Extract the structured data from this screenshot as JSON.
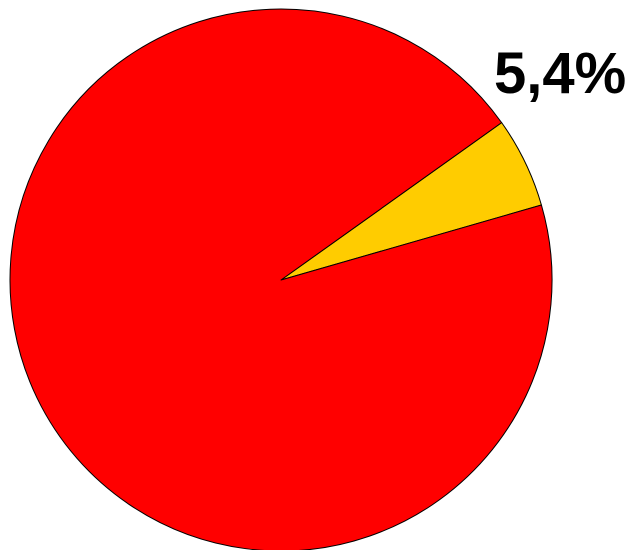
{
  "chart_data": {
    "type": "pie",
    "slices": [
      {
        "value": 5.4,
        "color": "#FFCC00",
        "label": "5,4%"
      },
      {
        "value": 94.6,
        "color": "#FF0000",
        "label": ""
      }
    ],
    "start_angle_deg": 35.5
  }
}
